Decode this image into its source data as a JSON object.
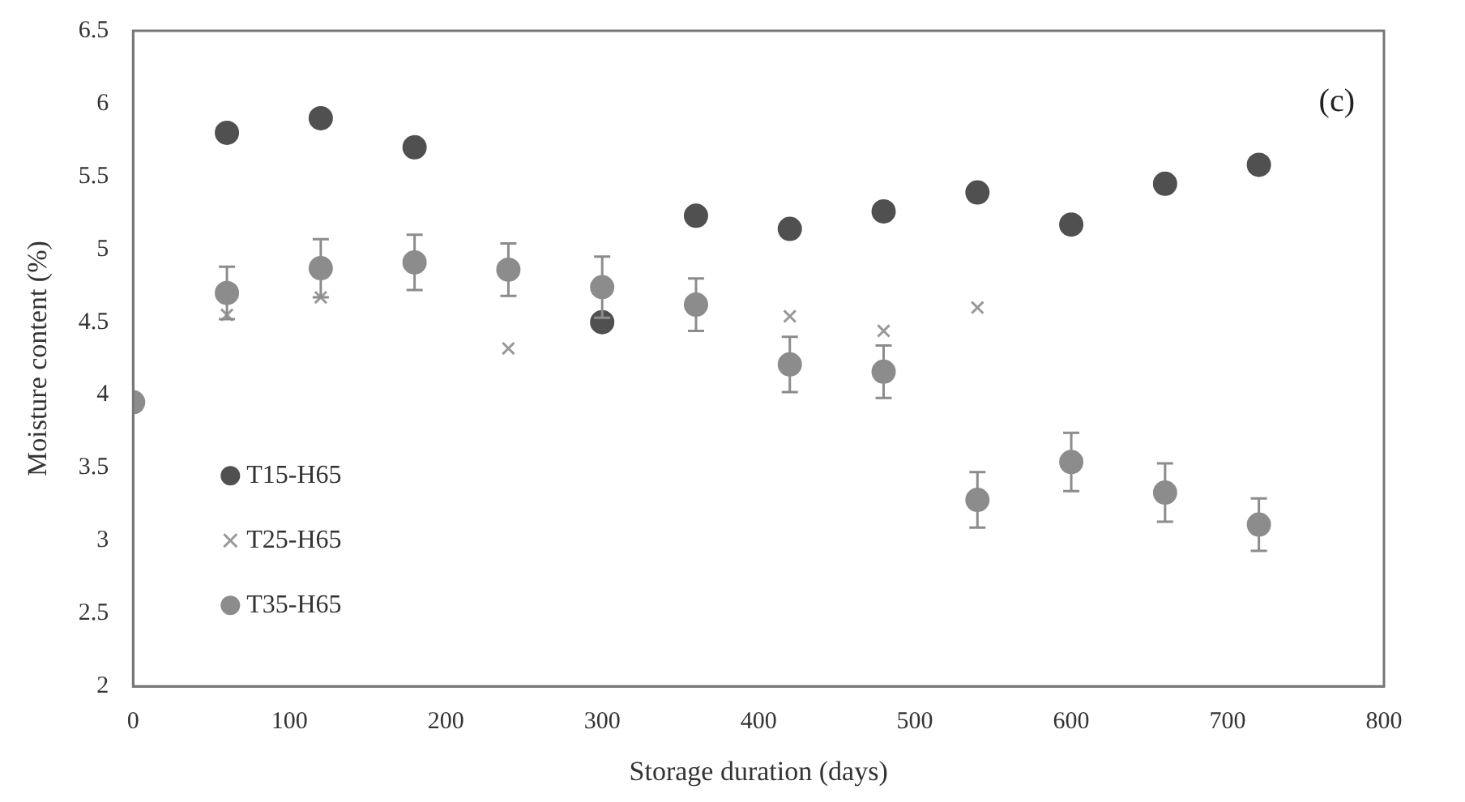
{
  "chart_data": {
    "type": "scatter",
    "xlabel": "Storage duration (days)",
    "ylabel": "Moisture content (%)",
    "x": [
      0,
      60,
      120,
      180,
      240,
      300,
      360,
      420,
      480,
      540,
      600,
      660,
      720
    ],
    "series": [
      {
        "name": "T15-H65",
        "color": "#505050",
        "marker": "circle",
        "values": [
          null,
          5.8,
          5.9,
          5.7,
          null,
          4.5,
          5.23,
          5.14,
          5.26,
          5.39,
          5.17,
          5.45,
          5.58
        ]
      },
      {
        "name": "T25-H65",
        "color": "#999999",
        "marker": "cross",
        "values": [
          null,
          4.55,
          4.67,
          null,
          4.32,
          null,
          null,
          4.54,
          4.44,
          4.6,
          null,
          null,
          null
        ]
      },
      {
        "name": "T35-H65",
        "color": "#8c8c8c",
        "marker": "circle",
        "values": [
          3.95,
          4.7,
          4.87,
          4.91,
          4.86,
          4.74,
          4.62,
          4.21,
          4.16,
          3.28,
          3.54,
          3.33,
          3.11
        ],
        "errors": [
          null,
          0.18,
          0.2,
          0.19,
          0.18,
          0.21,
          0.18,
          0.19,
          0.18,
          0.19,
          0.2,
          0.2,
          0.18
        ]
      }
    ],
    "xlim": [
      0,
      800
    ],
    "xticks": [
      0,
      100,
      200,
      300,
      400,
      500,
      600,
      700,
      800
    ],
    "ylim": [
      2,
      6.5
    ],
    "yticks": [
      2,
      2.5,
      3,
      3.5,
      4,
      4.5,
      5,
      5.5,
      6,
      6.5
    ],
    "grid": false,
    "legend": "bottom left",
    "annotations": [
      "(c)"
    ]
  }
}
